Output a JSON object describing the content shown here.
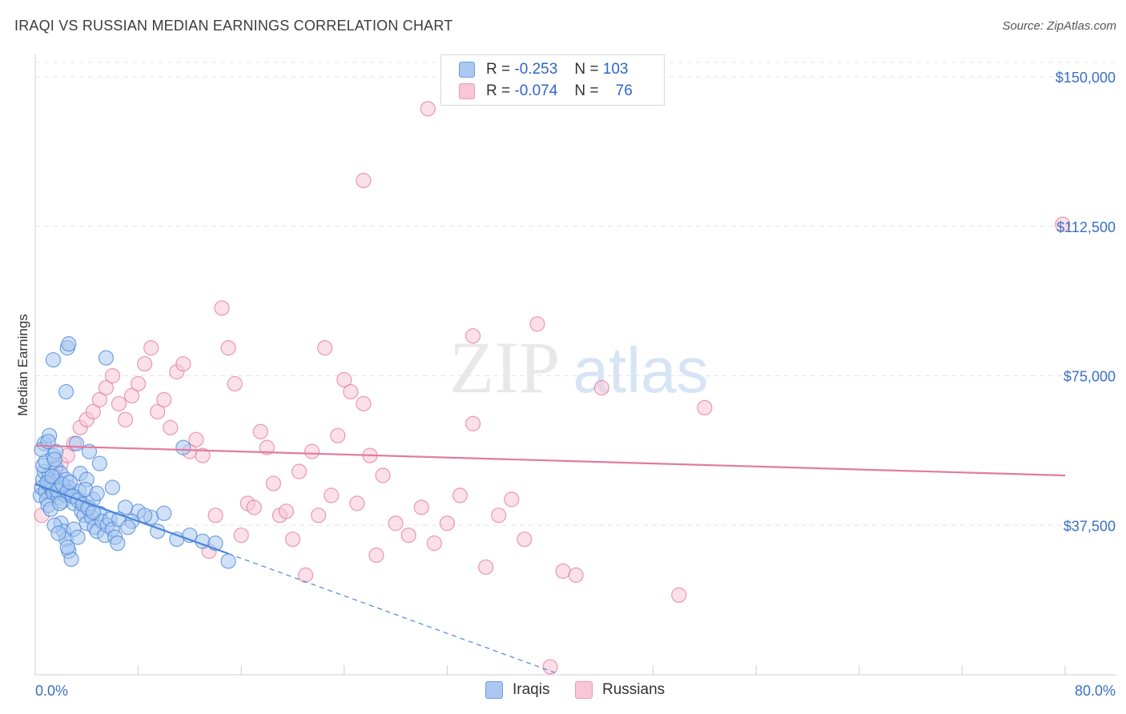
{
  "header": {
    "title": "IRAQI VS RUSSIAN MEDIAN EARNINGS CORRELATION CHART",
    "source": "Source: ZipAtlas.com"
  },
  "watermark": {
    "zip": "ZIP",
    "atlas": "atlas"
  },
  "legend": {
    "rows": [
      {
        "r_label": "R =",
        "r_value": "-0.253",
        "n_label": "N =",
        "n_value": "103",
        "color": "#aac8f0",
        "border": "#6fa0e0"
      },
      {
        "r_label": "R =",
        "r_value": "-0.074",
        "n_label": "N =",
        "n_value": "76",
        "color": "#f8c6d6",
        "border": "#ec9ab4"
      }
    ]
  },
  "bottom_legend": {
    "items": [
      {
        "label": "Iraqis",
        "color": "#aac8f0",
        "border": "#6fa0e0"
      },
      {
        "label": "Russians",
        "color": "#f8c6d6",
        "border": "#ec9ab4"
      }
    ]
  },
  "chart_data": {
    "type": "scatter",
    "title": "IRAQI VS RUSSIAN MEDIAN EARNINGS CORRELATION CHART",
    "xlabel": "",
    "ylabel": "Median Earnings",
    "xlim": [
      0,
      80
    ],
    "ylim": [
      0,
      150000
    ],
    "x_tick_labels": [
      "0.0%",
      "80.0%"
    ],
    "y_ticks": [
      37500,
      75000,
      112500,
      150000
    ],
    "y_tick_labels": [
      "$37,500",
      "$75,000",
      "$112,500",
      "$150,000"
    ],
    "grid": true,
    "legend_position": "top-center",
    "series": [
      {
        "name": "Iraqis",
        "color": "#4a86d8",
        "fill": "#aac8f0",
        "trend": {
          "x": [
            0,
            15
          ],
          "y": [
            47800,
            30400
          ],
          "extended_x": [
            15,
            40.4
          ],
          "extended_y": [
            30400,
            500
          ]
        },
        "points": [
          [
            0.4,
            45000
          ],
          [
            0.5,
            47000
          ],
          [
            0.6,
            49000
          ],
          [
            0.7,
            51000
          ],
          [
            0.8,
            46000
          ],
          [
            0.9,
            44000
          ],
          [
            1.0,
            48000
          ],
          [
            1.1,
            50000
          ],
          [
            1.2,
            47500
          ],
          [
            1.3,
            46500
          ],
          [
            1.4,
            45500
          ],
          [
            1.5,
            49500
          ],
          [
            1.6,
            52000
          ],
          [
            1.7,
            48500
          ],
          [
            1.8,
            44500
          ],
          [
            1.9,
            47200
          ],
          [
            2.0,
            50500
          ],
          [
            2.1,
            43500
          ],
          [
            2.2,
            46800
          ],
          [
            2.3,
            45200
          ],
          [
            0.6,
            52500
          ],
          [
            0.8,
            53500
          ],
          [
            1.0,
            42500
          ],
          [
            1.2,
            41500
          ],
          [
            1.4,
            55000
          ],
          [
            1.6,
            56000
          ],
          [
            0.7,
            58000
          ],
          [
            1.1,
            60000
          ],
          [
            1.5,
            54000
          ],
          [
            2.4,
            49000
          ],
          [
            2.6,
            47000
          ],
          [
            2.8,
            45000
          ],
          [
            3.0,
            43000
          ],
          [
            3.2,
            44500
          ],
          [
            3.4,
            46000
          ],
          [
            3.6,
            41000
          ],
          [
            3.8,
            40000
          ],
          [
            4.0,
            38000
          ],
          [
            4.2,
            42000
          ],
          [
            4.4,
            39500
          ],
          [
            4.6,
            37000
          ],
          [
            4.8,
            36000
          ],
          [
            5.0,
            40500
          ],
          [
            5.2,
            38500
          ],
          [
            5.4,
            35000
          ],
          [
            5.6,
            37500
          ],
          [
            5.8,
            39000
          ],
          [
            6.0,
            36500
          ],
          [
            6.2,
            34500
          ],
          [
            6.4,
            33000
          ],
          [
            2.0,
            38000
          ],
          [
            2.2,
            36000
          ],
          [
            2.4,
            34000
          ],
          [
            2.6,
            31000
          ],
          [
            2.8,
            29000
          ],
          [
            3.0,
            36500
          ],
          [
            1.5,
            37500
          ],
          [
            1.8,
            35500
          ],
          [
            2.5,
            32000
          ],
          [
            3.3,
            34500
          ],
          [
            0.9,
            48200
          ],
          [
            1.3,
            49800
          ],
          [
            1.7,
            46200
          ],
          [
            2.1,
            47800
          ],
          [
            2.5,
            45800
          ],
          [
            2.9,
            44800
          ],
          [
            3.3,
            43800
          ],
          [
            3.7,
            42800
          ],
          [
            4.1,
            41800
          ],
          [
            4.5,
            40800
          ],
          [
            1.4,
            79000
          ],
          [
            2.4,
            71000
          ],
          [
            2.5,
            82000
          ],
          [
            2.6,
            83000
          ],
          [
            5.5,
            79500
          ],
          [
            3.2,
            58000
          ],
          [
            4.2,
            56000
          ],
          [
            6.0,
            47000
          ],
          [
            5.0,
            53000
          ],
          [
            8.0,
            41000
          ],
          [
            9.0,
            39500
          ],
          [
            10.0,
            40500
          ],
          [
            11.0,
            34000
          ],
          [
            12.0,
            35000
          ],
          [
            13.0,
            33500
          ],
          [
            14.0,
            33000
          ],
          [
            15.0,
            28500
          ],
          [
            11.5,
            57000
          ],
          [
            3.5,
            50500
          ],
          [
            4.0,
            49000
          ],
          [
            4.5,
            44000
          ],
          [
            7.0,
            42000
          ],
          [
            7.5,
            38500
          ],
          [
            8.5,
            40000
          ],
          [
            3.9,
            46500
          ],
          [
            2.7,
            48300
          ],
          [
            1.9,
            43000
          ],
          [
            0.5,
            56500
          ],
          [
            1.0,
            58500
          ],
          [
            4.8,
            45500
          ],
          [
            6.5,
            39000
          ],
          [
            7.2,
            37000
          ],
          [
            9.5,
            36000
          ]
        ]
      },
      {
        "name": "Russians",
        "color": "#e27aa0",
        "fill": "#f8c6d6",
        "trend": {
          "x": [
            0,
            80
          ],
          "y": [
            57500,
            50000
          ]
        },
        "points": [
          [
            0.5,
            40000
          ],
          [
            1.0,
            46000
          ],
          [
            1.5,
            50000
          ],
          [
            2.0,
            53000
          ],
          [
            2.5,
            55000
          ],
          [
            3.0,
            58000
          ],
          [
            3.5,
            62000
          ],
          [
            4.0,
            64000
          ],
          [
            4.5,
            66000
          ],
          [
            5.0,
            69000
          ],
          [
            5.5,
            72000
          ],
          [
            6.0,
            75000
          ],
          [
            6.5,
            68000
          ],
          [
            7.0,
            64000
          ],
          [
            7.5,
            70000
          ],
          [
            8.0,
            73000
          ],
          [
            8.5,
            78000
          ],
          [
            9.0,
            82000
          ],
          [
            9.5,
            66000
          ],
          [
            10.0,
            69000
          ],
          [
            10.5,
            62000
          ],
          [
            11.0,
            76000
          ],
          [
            11.5,
            78000
          ],
          [
            12.0,
            56000
          ],
          [
            12.5,
            59000
          ],
          [
            13.0,
            55000
          ],
          [
            13.5,
            31000
          ],
          [
            14.0,
            40000
          ],
          [
            14.5,
            92000
          ],
          [
            15.0,
            82000
          ],
          [
            15.5,
            73000
          ],
          [
            16.0,
            35000
          ],
          [
            16.5,
            43000
          ],
          [
            17.0,
            42000
          ],
          [
            17.5,
            61000
          ],
          [
            18.0,
            57000
          ],
          [
            18.5,
            48000
          ],
          [
            19.0,
            40000
          ],
          [
            19.5,
            41000
          ],
          [
            20.0,
            34000
          ],
          [
            20.5,
            51000
          ],
          [
            21.0,
            25000
          ],
          [
            21.5,
            56000
          ],
          [
            22.0,
            40000
          ],
          [
            22.5,
            82000
          ],
          [
            23.0,
            45000
          ],
          [
            23.5,
            60000
          ],
          [
            24.0,
            74000
          ],
          [
            24.5,
            71000
          ],
          [
            25.0,
            43000
          ],
          [
            25.5,
            68000
          ],
          [
            26.0,
            55000
          ],
          [
            26.5,
            30000
          ],
          [
            27.0,
            50000
          ],
          [
            28.0,
            38000
          ],
          [
            29.0,
            35000
          ],
          [
            30.0,
            42000
          ],
          [
            31.0,
            33000
          ],
          [
            32.0,
            38000
          ],
          [
            33.0,
            45000
          ],
          [
            34.0,
            63000
          ],
          [
            35.0,
            27000
          ],
          [
            36.0,
            40000
          ],
          [
            37.0,
            44000
          ],
          [
            38.0,
            34000
          ],
          [
            39.0,
            88000
          ],
          [
            40.0,
            2000
          ],
          [
            41.0,
            26000
          ],
          [
            42.0,
            25000
          ],
          [
            44.0,
            72000
          ],
          [
            50.0,
            20000
          ],
          [
            52.0,
            67000
          ],
          [
            30.5,
            142000
          ],
          [
            25.5,
            124000
          ],
          [
            79.8,
            113000
          ],
          [
            34.0,
            85000
          ]
        ]
      }
    ]
  }
}
